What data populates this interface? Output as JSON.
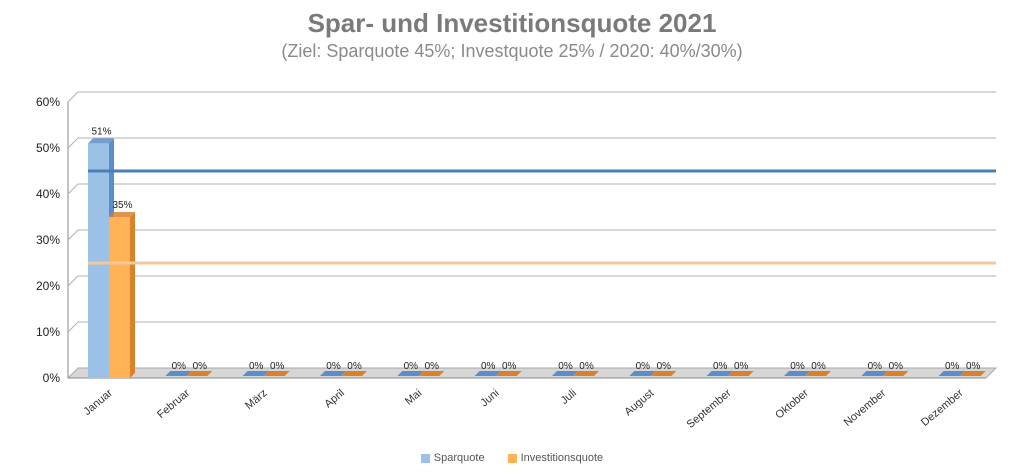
{
  "colors": {
    "spar": "#9bc2e6",
    "spar_side": "#5b8dc9",
    "invest": "#ffb356",
    "invest_side": "#d9822b",
    "target_spar": "#4a7fb5",
    "target_invest": "#f6c79a",
    "grid": "#b0b0b0"
  },
  "chart_data": {
    "type": "bar",
    "title": "Spar- und Investitionsquote 2021",
    "subtitle": "(Ziel: Sparquote 45%; Investquote 25% / 2020: 40%/30%)",
    "categories": [
      "Januar",
      "Februar",
      "März",
      "April",
      "Mai",
      "Juni",
      "Juli",
      "August",
      "September",
      "Oktober",
      "November",
      "Dezember"
    ],
    "series": [
      {
        "name": "Sparquote",
        "values": [
          51,
          0,
          0,
          0,
          0,
          0,
          0,
          0,
          0,
          0,
          0,
          0
        ],
        "labels": [
          "51%",
          "0%",
          "0%",
          "0%",
          "0%",
          "0%",
          "0%",
          "0%",
          "0%",
          "0%",
          "0%",
          "0%"
        ]
      },
      {
        "name": "Investitionsquote",
        "values": [
          35,
          0,
          0,
          0,
          0,
          0,
          0,
          0,
          0,
          0,
          0,
          0
        ],
        "labels": [
          "35%",
          "0%",
          "0%",
          "0%",
          "0%",
          "0%",
          "0%",
          "0%",
          "0%",
          "0%",
          "0%",
          "0%"
        ]
      }
    ],
    "target_lines": [
      {
        "series": "Sparquote",
        "value": 45
      },
      {
        "series": "Investitionsquote",
        "value": 25
      }
    ],
    "yticks": [
      "0%",
      "10%",
      "20%",
      "30%",
      "40%",
      "50%",
      "60%"
    ],
    "ylim": [
      0,
      60
    ],
    "grid": true,
    "legend_position": "bottom"
  }
}
